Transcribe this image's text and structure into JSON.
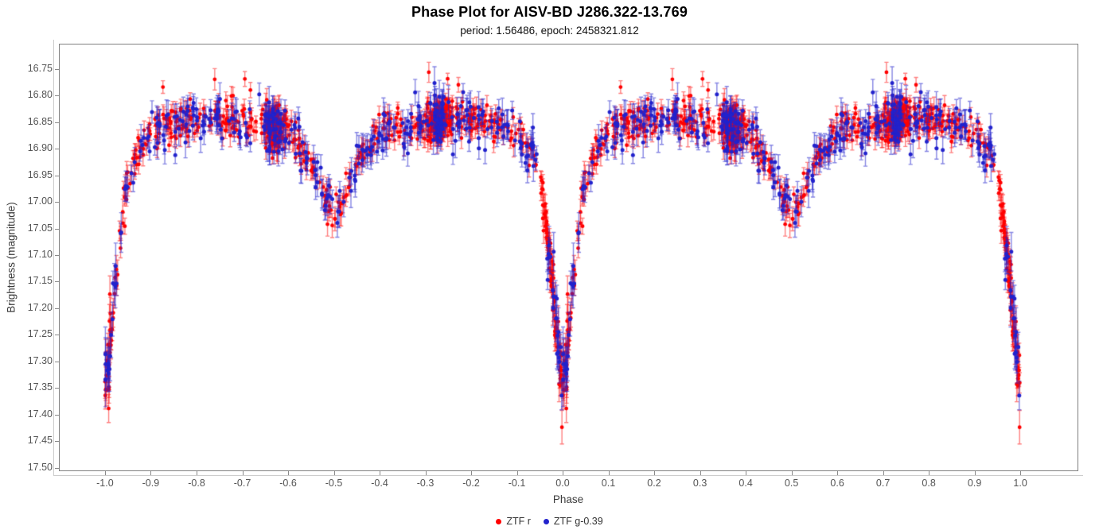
{
  "chart_data": {
    "type": "scatter",
    "title": "Phase Plot for AISV-BD J286.322-13.769",
    "subtitle": "period: 1.56486, epoch: 2458321.812",
    "xlabel": "Phase",
    "ylabel": "Brightness (magnitude)",
    "grid": false,
    "legend_position": "bottom",
    "y_axis_inverted_magnitudes": true,
    "xlim": [
      -1.099,
      1.125
    ],
    "ylim_top": 16.704,
    "ylim_bottom": 17.505,
    "x_ticks": [
      -1.0,
      -0.9,
      -0.8,
      -0.7,
      -0.6,
      -0.5,
      -0.4,
      -0.3,
      -0.2,
      -0.1,
      0.0,
      0.1,
      0.2,
      0.3,
      0.4,
      0.5,
      0.6,
      0.7,
      0.8,
      0.9,
      1.0
    ],
    "y_ticks": [
      16.75,
      16.8,
      16.85,
      16.9,
      16.95,
      17.0,
      17.05,
      17.1,
      17.15,
      17.2,
      17.25,
      17.3,
      17.35,
      17.4,
      17.45,
      17.5
    ],
    "light_curve_model": {
      "note": "Eclipsing-binary mean light curve; every observation is plotted twice, at phase p and p-1. Primary eclipse at phase 0/±1 bottoms near mag 17.35, secondary eclipse at ±0.5 near mag 17.02, out-of-eclipse level near 16.85.",
      "anchors": [
        [
          0.0,
          17.345
        ],
        [
          0.004,
          17.33
        ],
        [
          0.008,
          17.3
        ],
        [
          0.012,
          17.262
        ],
        [
          0.016,
          17.222
        ],
        [
          0.02,
          17.185
        ],
        [
          0.025,
          17.14
        ],
        [
          0.03,
          17.096
        ],
        [
          0.035,
          17.052
        ],
        [
          0.04,
          17.012
        ],
        [
          0.045,
          16.986
        ],
        [
          0.05,
          16.962
        ],
        [
          0.06,
          16.93
        ],
        [
          0.07,
          16.908
        ],
        [
          0.08,
          16.893
        ],
        [
          0.09,
          16.882
        ],
        [
          0.1,
          16.872
        ],
        [
          0.12,
          16.862
        ],
        [
          0.15,
          16.853
        ],
        [
          0.2,
          16.846
        ],
        [
          0.25,
          16.843
        ],
        [
          0.3,
          16.848
        ],
        [
          0.35,
          16.856
        ],
        [
          0.38,
          16.863
        ],
        [
          0.4,
          16.873
        ],
        [
          0.42,
          16.889
        ],
        [
          0.44,
          16.913
        ],
        [
          0.46,
          16.946
        ],
        [
          0.475,
          16.976
        ],
        [
          0.49,
          17.008
        ],
        [
          0.5,
          17.022
        ],
        [
          0.51,
          17.008
        ],
        [
          0.525,
          16.976
        ],
        [
          0.54,
          16.946
        ],
        [
          0.56,
          16.913
        ],
        [
          0.58,
          16.889
        ],
        [
          0.6,
          16.873
        ],
        [
          0.62,
          16.863
        ],
        [
          0.65,
          16.856
        ],
        [
          0.7,
          16.848
        ],
        [
          0.75,
          16.843
        ],
        [
          0.8,
          16.846
        ],
        [
          0.85,
          16.853
        ],
        [
          0.88,
          16.862
        ],
        [
          0.9,
          16.872
        ],
        [
          0.91,
          16.882
        ],
        [
          0.92,
          16.893
        ],
        [
          0.93,
          16.908
        ],
        [
          0.94,
          16.93
        ],
        [
          0.95,
          16.962
        ],
        [
          0.955,
          16.986
        ],
        [
          0.96,
          17.012
        ],
        [
          0.965,
          17.052
        ],
        [
          0.97,
          17.096
        ],
        [
          0.975,
          17.14
        ],
        [
          0.98,
          17.185
        ],
        [
          0.984,
          17.222
        ],
        [
          0.988,
          17.262
        ],
        [
          0.992,
          17.3
        ],
        [
          0.996,
          17.33
        ],
        [
          1.0,
          17.345
        ]
      ]
    },
    "series": [
      {
        "name": "ZTF r",
        "color": "#ff0000",
        "bar_alpha": 0.5,
        "marker_radius": 2.4,
        "n_base": 470,
        "noise": 0.016,
        "err_min": 0.01,
        "err_max": 0.022,
        "clusters": [
          {
            "phase": 0.37,
            "sd": 0.012,
            "n": 150
          },
          {
            "phase": 0.728,
            "sd": 0.013,
            "n": 140
          }
        ],
        "eclipse_track": {
          "from": 0.956,
          "to": 1.014,
          "n": 85
        },
        "bright_outliers": {
          "n": 7,
          "dmag_min": 0.05,
          "dmag_max": 0.1
        }
      },
      {
        "name": "ZTF g-0.39",
        "color": "#2222cc",
        "bar_alpha": 0.55,
        "marker_radius": 2.5,
        "n_base": 300,
        "noise": 0.021,
        "err_min": 0.014,
        "err_max": 0.032,
        "clusters": [
          {
            "phase": 0.37,
            "sd": 0.012,
            "n": 40
          },
          {
            "phase": 0.728,
            "sd": 0.013,
            "n": 36
          }
        ],
        "eclipse_track": {
          "from": 0.956,
          "to": 1.014,
          "n": 14
        },
        "bright_outliers": {
          "n": 2,
          "dmag_min": 0.04,
          "dmag_max": 0.07
        }
      }
    ]
  },
  "legend": {
    "items": [
      {
        "label": "ZTF r",
        "color": "#ff0000"
      },
      {
        "label": "ZTF g-0.39",
        "color": "#2222cc"
      }
    ]
  }
}
